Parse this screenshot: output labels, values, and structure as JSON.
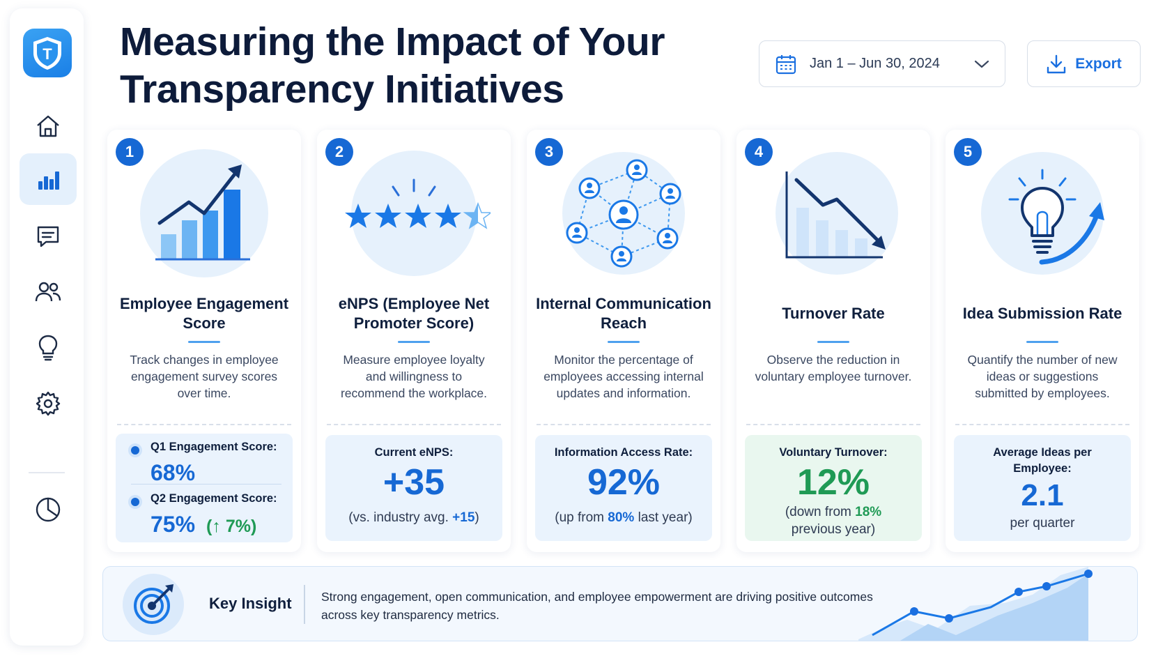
{
  "app": {
    "logo_letter": "T"
  },
  "sidebar": {
    "items": [
      {
        "icon": "home-icon"
      },
      {
        "icon": "bar-chart-icon",
        "active": true
      },
      {
        "icon": "message-icon"
      },
      {
        "icon": "users-icon"
      },
      {
        "icon": "lightbulb-icon"
      },
      {
        "icon": "gear-icon"
      },
      {
        "icon": "pie-chart-icon"
      }
    ]
  },
  "header": {
    "title": "Measuring the Impact of Your Transparency Initiatives",
    "date_range": "Jan 1 – Jun 30, 2024",
    "export_label": "Export"
  },
  "cards": [
    {
      "number": "1",
      "title": "Employee Engagement Score",
      "description": "Track changes in employee engagement survey scores over time.",
      "q1_label": "Q1 Engagement Score:",
      "q1_value": "68%",
      "q2_label": "Q2 Engagement Score:",
      "q2_value": "75%",
      "q2_change": "(↑ 7%)"
    },
    {
      "number": "2",
      "title": "eNPS (Employee Net Promoter Score)",
      "description": "Measure employee loyalty and willingness to recommend the workplace.",
      "metric_label": "Current eNPS:",
      "metric_value": "+35",
      "sub_before": "(vs. industry avg. ",
      "sub_highlight": "+15",
      "sub_after": ")",
      "stars": 4.5
    },
    {
      "number": "3",
      "title": "Internal Communication Reach",
      "description": "Monitor the percentage of employees accessing internal updates and information.",
      "metric_label": "Information Access Rate:",
      "metric_value": "92%",
      "sub_before": "(up from ",
      "sub_highlight": "80%",
      "sub_after": " last year)"
    },
    {
      "number": "4",
      "title": "Turnover Rate",
      "description": "Observe the reduction in voluntary employee turnover.",
      "metric_label": "Voluntary Turnover:",
      "metric_value": "12%",
      "sub_before": "(down from ",
      "sub_highlight": "18%",
      "sub_after": " previous year)"
    },
    {
      "number": "5",
      "title": "Idea Submission Rate",
      "description": "Quantify the number of new ideas or suggestions submitted by employees.",
      "metric_label": "Average Ideas per Employee:",
      "metric_value": "2.1",
      "sub_before": "per quarter"
    }
  ],
  "insight": {
    "title": "Key Insight",
    "text": "Strong engagement, open communication, and employee empowerment are driving positive outcomes across key transparency metrics."
  },
  "colors": {
    "primary": "#1668d4",
    "accent": "#4ea0ee",
    "positive": "#1f9a55",
    "text": "#0f1f3d"
  }
}
